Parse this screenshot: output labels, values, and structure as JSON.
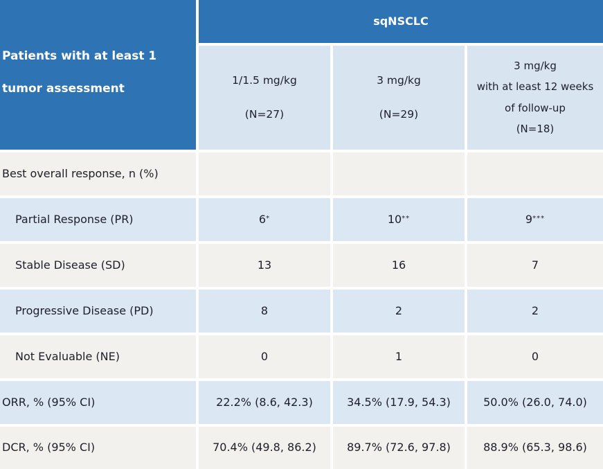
{
  "table": {
    "corner_header": {
      "line1": "Patients with at least 1",
      "line2": "tumor assessment"
    },
    "group_header": "sqNSCLC",
    "columns": [
      {
        "lines": [
          "1/1.5 mg/kg",
          "(N=27)"
        ]
      },
      {
        "lines": [
          "3 mg/kg",
          "(N=29)"
        ]
      },
      {
        "lines": [
          "3 mg/kg",
          "with at least 12 weeks",
          "of follow-up",
          "(N=18)"
        ]
      }
    ],
    "rows": [
      {
        "label": "Best overall response, n (%)",
        "cells": [
          {
            "text": ""
          },
          {
            "text": ""
          },
          {
            "text": ""
          }
        ]
      },
      {
        "label": "Partial Response (PR)",
        "cells": [
          {
            "text": "6",
            "sup": "*"
          },
          {
            "text": "10",
            "sup": "**"
          },
          {
            "text": "9",
            "sup": "***"
          }
        ]
      },
      {
        "label": "Stable Disease (SD)",
        "cells": [
          {
            "text": "13"
          },
          {
            "text": "16"
          },
          {
            "text": "7"
          }
        ]
      },
      {
        "label": "Progressive Disease (PD)",
        "cells": [
          {
            "text": "8"
          },
          {
            "text": "2"
          },
          {
            "text": "2"
          }
        ]
      },
      {
        "label": "Not Evaluable (NE)",
        "cells": [
          {
            "text": "0"
          },
          {
            "text": "1"
          },
          {
            "text": "0"
          }
        ]
      },
      {
        "label": "ORR, % (95% CI)",
        "cells": [
          {
            "text": "22.2% (8.6, 42.3)"
          },
          {
            "text": "34.5% (17.9, 54.3)"
          },
          {
            "text": "50.0% (26.0, 74.0)"
          }
        ]
      },
      {
        "label": "DCR, % (95% CI)",
        "cells": [
          {
            "text": "70.4% (49.8, 86.2)"
          },
          {
            "text": "89.7% (72.6, 97.8)"
          },
          {
            "text": "88.9% (65.3, 98.6)"
          }
        ]
      }
    ],
    "colors": {
      "header_blue": "#2e74b5",
      "column_header_blue": "#d9e4f1",
      "row_blue": "#dce7f4",
      "row_gray": "#f2f1ee",
      "gap_white": "#ffffff",
      "text_dark": "#1d1f28",
      "text_white": "#ffffff"
    }
  }
}
